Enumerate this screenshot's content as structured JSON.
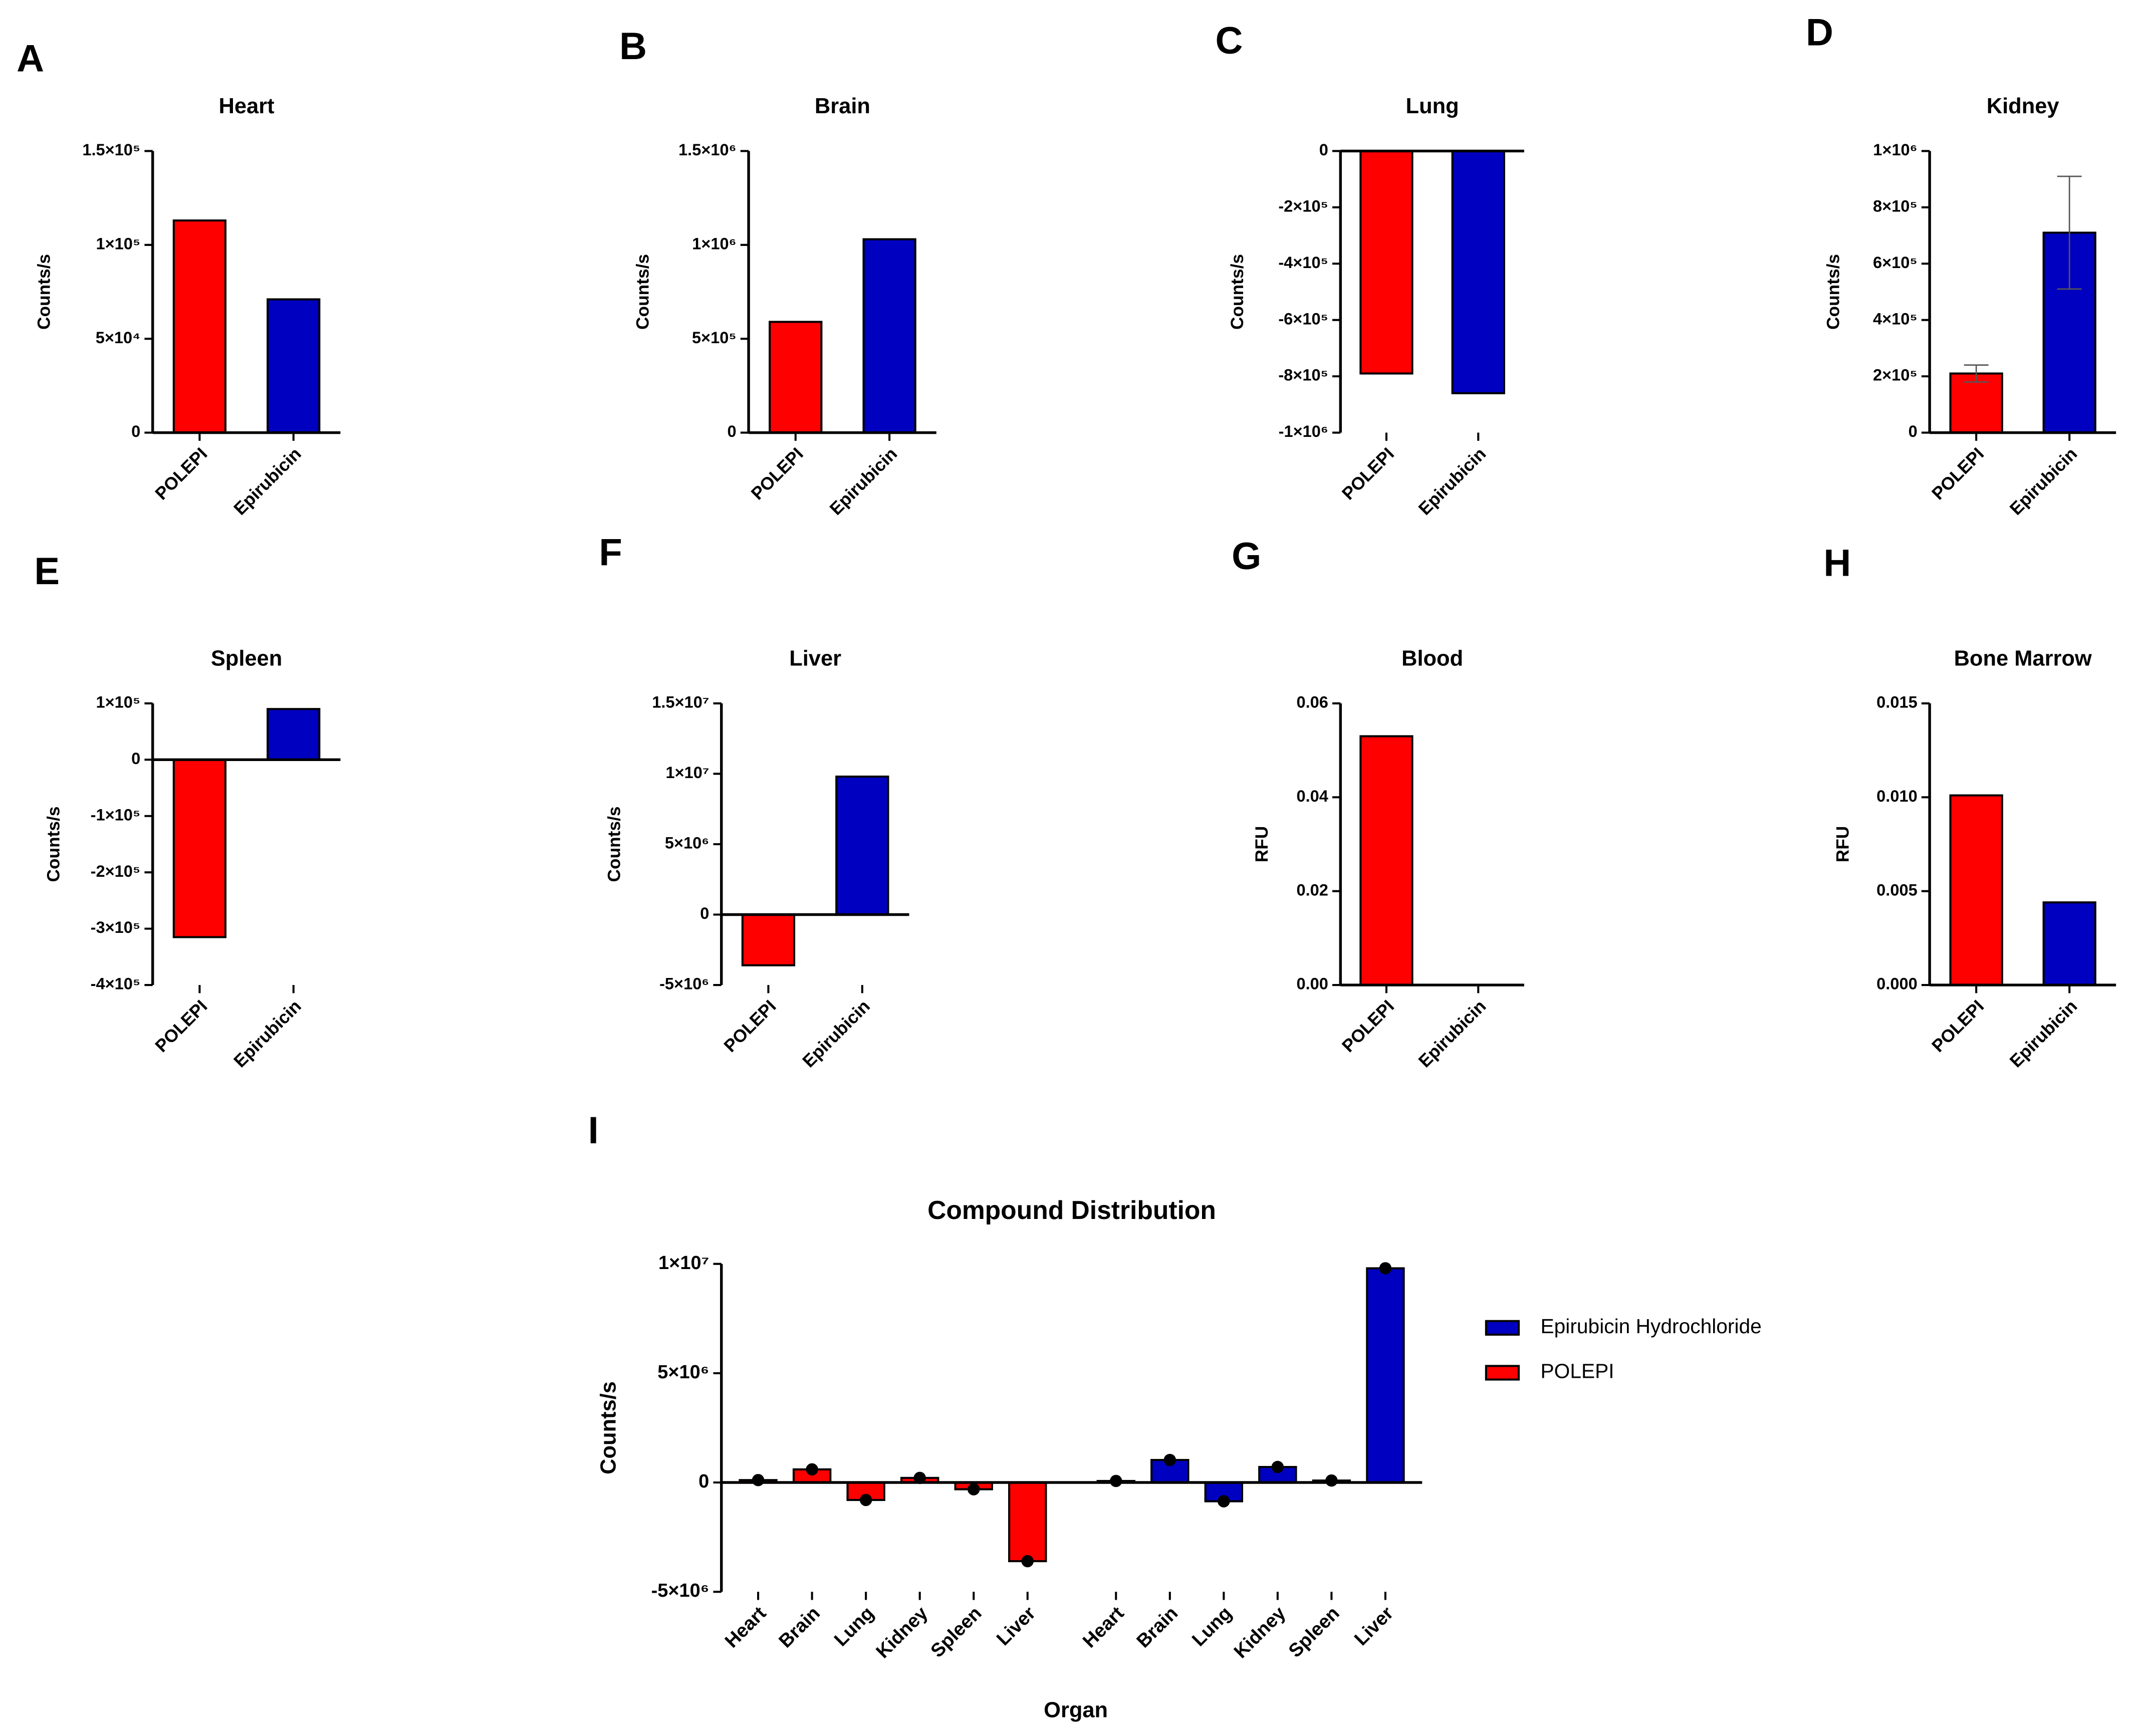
{
  "chart_data": [
    {
      "type": "bar",
      "panel": "A",
      "title": "Heart",
      "y_label": "Counts/s",
      "categories": [
        "POLEPI",
        "Epirubicin"
      ],
      "values": [
        113000,
        71000
      ],
      "colors": [
        "#ff0000",
        "#0000c0"
      ],
      "ylim": [
        0,
        150000
      ],
      "yticks": [
        0,
        {
          "value": 50000,
          "label": "5×10⁴"
        },
        {
          "value": 100000,
          "label": "1×10⁵"
        },
        {
          "value": 150000,
          "label": "1.5×10⁵"
        }
      ]
    },
    {
      "type": "bar",
      "panel": "B",
      "title": "Brain",
      "y_label": "Counts/s",
      "categories": [
        "POLEPI",
        "Epirubicin"
      ],
      "values": [
        590000,
        1030000
      ],
      "colors": [
        "#ff0000",
        "#0000c0"
      ],
      "ylim": [
        0,
        1500000
      ],
      "yticks": [
        0,
        {
          "value": 500000,
          "label": "5×10⁵"
        },
        {
          "value": 1000000,
          "label": "1×10⁶"
        },
        {
          "value": 1500000,
          "label": "1.5×10⁶"
        }
      ]
    },
    {
      "type": "bar",
      "panel": "C",
      "title": "Lung",
      "y_label": "Counts/s",
      "categories": [
        "POLEPI",
        "Epirubicin"
      ],
      "values": [
        -790000,
        -860000
      ],
      "colors": [
        "#ff0000",
        "#0000c0"
      ],
      "ylim": [
        -1000000,
        0
      ],
      "yticks": [
        0,
        {
          "value": -200000,
          "label": "-2×10⁵"
        },
        {
          "value": -400000,
          "label": "-4×10⁵"
        },
        {
          "value": -600000,
          "label": "-6×10⁵"
        },
        {
          "value": -800000,
          "label": "-8×10⁵"
        },
        {
          "value": -1000000,
          "label": "-1×10⁶"
        }
      ]
    },
    {
      "type": "bar",
      "panel": "D",
      "title": "Kidney",
      "y_label": "Counts/s",
      "categories": [
        "POLEPI",
        "Epirubicin"
      ],
      "values": [
        210000,
        710000
      ],
      "errors": [
        30000,
        200000
      ],
      "colors": [
        "#ff0000",
        "#0000c0"
      ],
      "ylim": [
        0,
        1000000
      ],
      "yticks": [
        0,
        {
          "value": 200000,
          "label": "2×10⁵"
        },
        {
          "value": 400000,
          "label": "4×10⁵"
        },
        {
          "value": 600000,
          "label": "6×10⁵"
        },
        {
          "value": 800000,
          "label": "8×10⁵"
        },
        {
          "value": 1000000,
          "label": "1×10⁶"
        }
      ]
    },
    {
      "type": "bar",
      "panel": "E",
      "title": "Spleen",
      "y_label": "Counts/s",
      "categories": [
        "POLEPI",
        "Epirubicin"
      ],
      "values": [
        -315000,
        90000
      ],
      "colors": [
        "#ff0000",
        "#0000c0"
      ],
      "ylim": [
        -400000,
        100000
      ],
      "yticks": [
        {
          "value": 100000,
          "label": "1×10⁵"
        },
        0,
        {
          "value": -100000,
          "label": "-1×10⁵"
        },
        {
          "value": -200000,
          "label": "-2×10⁵"
        },
        {
          "value": -300000,
          "label": "-3×10⁵"
        },
        {
          "value": -400000,
          "label": "-4×10⁵"
        }
      ]
    },
    {
      "type": "bar",
      "panel": "F",
      "title": "Liver",
      "y_label": "Counts/s",
      "categories": [
        "POLEPI",
        "Epirubicin"
      ],
      "values": [
        -3600000,
        9800000
      ],
      "colors": [
        "#ff0000",
        "#0000c0"
      ],
      "ylim": [
        -5000000,
        15000000
      ],
      "yticks": [
        {
          "value": -5000000,
          "label": "-5×10⁶"
        },
        0,
        {
          "value": 5000000,
          "label": "5×10⁶"
        },
        {
          "value": 10000000,
          "label": "1×10⁷"
        },
        {
          "value": 15000000,
          "label": "1.5×10⁷"
        }
      ]
    },
    {
      "type": "bar",
      "panel": "G",
      "title": "Blood",
      "y_label": "RFU",
      "categories": [
        "POLEPI",
        "Epirubicin"
      ],
      "values": [
        0.053,
        0
      ],
      "colors": [
        "#ff0000",
        "#0000c0"
      ],
      "ylim": [
        0,
        0.06
      ],
      "yticks": [
        {
          "value": 0,
          "label": "0.00"
        },
        0.02,
        0.04,
        0.06
      ]
    },
    {
      "type": "bar",
      "panel": "H",
      "title": "Bone Marrow",
      "y_label": "RFU",
      "categories": [
        "POLEPI",
        "Epirubicin"
      ],
      "values": [
        0.0101,
        0.0044
      ],
      "colors": [
        "#ff0000",
        "#0000c0"
      ],
      "ylim": [
        0,
        0.015
      ],
      "yticks": [
        {
          "value": 0,
          "label": "0.000"
        },
        0.005,
        {
          "value": 0.01,
          "label": "0.010"
        },
        0.015
      ]
    },
    {
      "type": "grouped_bar",
      "panel": "I",
      "title": "Compound Distribution",
      "y_label": "Counts/s",
      "x_label": "Organ",
      "categories": [
        "Heart",
        "Brain",
        "Lung",
        "Kidney",
        "Spleen",
        "Liver"
      ],
      "series": [
        {
          "name": "POLEPI",
          "color": "#ff0000",
          "values": [
            110000,
            600000,
            -800000,
            210000,
            -310000,
            -3600000
          ]
        },
        {
          "name": "Epirubicin Hydrochloride",
          "color": "#0000c0",
          "values": [
            70000,
            1030000,
            -860000,
            710000,
            90000,
            9800000
          ]
        }
      ],
      "ylim": [
        -5000000,
        10000000
      ],
      "yticks": [
        {
          "value": -5000000,
          "label": "-5×10⁶"
        },
        0,
        {
          "value": 5000000,
          "label": "5×10⁶"
        },
        {
          "value": 10000000,
          "label": "1×10⁷"
        }
      ]
    }
  ]
}
